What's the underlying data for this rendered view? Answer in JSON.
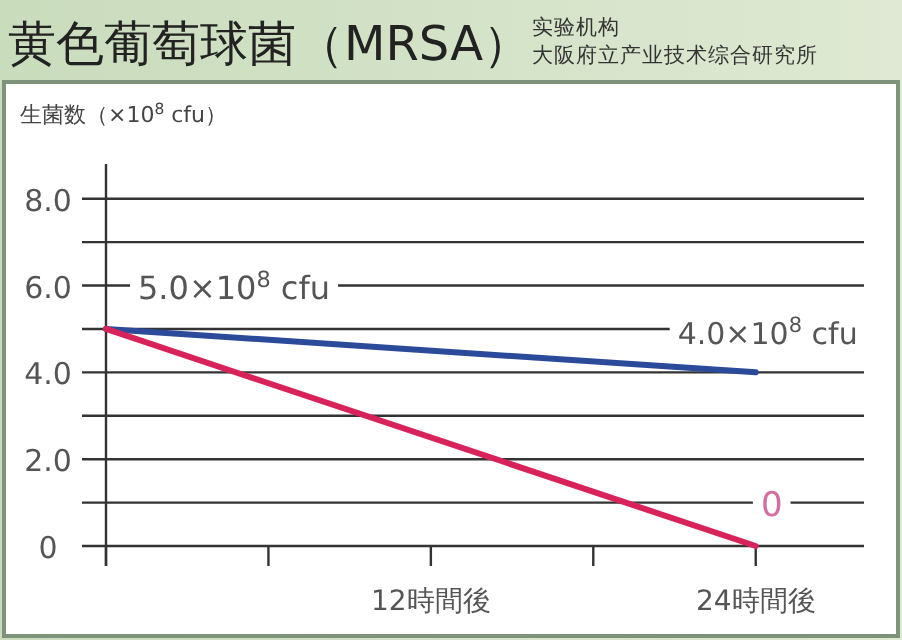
{
  "chart_data": {
    "type": "line",
    "title": "黄色葡萄球菌（MRSA）",
    "ylabel": "生菌数（×10$^{8}$ cfu）",
    "annotations": [
      "实验机构",
      "大阪府立产业技术综合研究所",
      "5.0×10$^{8}$ cfu",
      "4.0×10$^{8}$ cfu",
      "0"
    ],
    "x": [
      0,
      24
    ],
    "series": [
      {
        "color": "#2b4a9a",
        "values": [
          5.0,
          4.0
        ]
      },
      {
        "color": "#d8235a",
        "values": [
          5.0,
          0
        ]
      }
    ],
    "xlim": [
      0,
      28
    ],
    "xticks": [
      {
        "value": 0,
        "label": null
      },
      {
        "value": 6,
        "label": null
      },
      {
        "value": 12,
        "label": "12時間後"
      },
      {
        "value": 18,
        "label": null
      },
      {
        "value": 24,
        "label": "24時間後"
      }
    ],
    "ylim": [
      0,
      8.8
    ],
    "yticks": [
      0,
      {
        "value": 1,
        "label": null
      },
      {
        "value": 2,
        "label": "2.0"
      },
      {
        "value": 3,
        "label": null
      },
      {
        "value": 4,
        "label": "4.0"
      },
      {
        "value": 5,
        "label": null
      },
      {
        "value": 6,
        "label": "6.0"
      },
      {
        "value": 7,
        "label": null
      },
      {
        "value": 8,
        "label": "8.0"
      }
    ],
    "grid": "y"
  }
}
